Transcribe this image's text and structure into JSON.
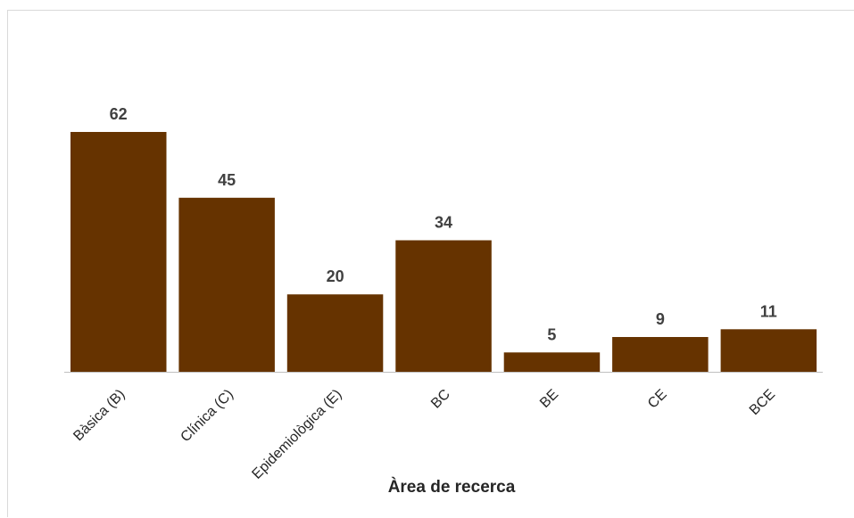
{
  "chart_data": {
    "type": "bar",
    "categories": [
      "Bàsica (B)",
      "Clínica (C)",
      "Epidemiològica (E)",
      "BC",
      "BE",
      "CE",
      "BCE"
    ],
    "values": [
      62,
      45,
      20,
      34,
      5,
      9,
      11
    ],
    "title": "",
    "xlabel": "Àrea de recerca",
    "ylabel": "",
    "ylim": [
      0,
      62
    ],
    "grid": false,
    "legend": "none",
    "bar_color": "#663300",
    "data_labels": true
  }
}
